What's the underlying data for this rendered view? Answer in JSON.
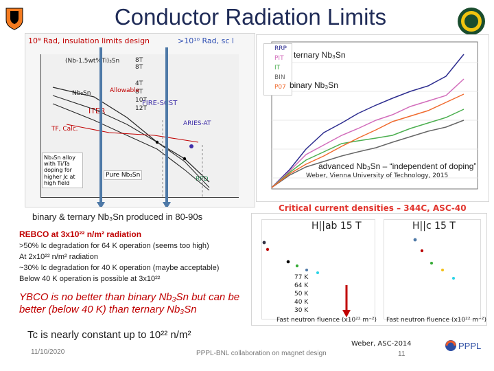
{
  "title": "Conductor Radiation Limits",
  "top_left_label_1": "10⁹ Rad, insulation limits design",
  "top_left_label_2": ">10¹⁰ Rad, sc l",
  "top_left_axis_1": "(Nb-1.5wt%Ti)₃Sn",
  "top_left_axis_2": "Nb₃Sn",
  "top_left_axis_3": "Allowable",
  "top_left_axis_4": "ITER",
  "top_left_axis_5": "FIRE-SCST",
  "top_left_axis_6": "ARIES-AT",
  "top_left_axis_7": "TF, Calc.",
  "top_left_axis_8": "RPD",
  "top_left_legend": [
    "8T",
    "8T",
    "4T",
    "8T",
    "10T",
    "12T"
  ],
  "left_box_text": "Nb₃Sn alloy with Ti/Ta doping for higher Jc at high field",
  "pure_label": "Pure Nb₃Sn",
  "lower_left_text": "binary & ternary Nb₃Sn produced in 80-90s",
  "middle_title": "REBCO at 3x10²² n/m² radiation",
  "middle_lines": [
    ">50% Ic degradation for 64 K operation (seems too high)",
    "At  2x10²² n/m² radiation",
    "~30% Ic degradation for 40 K operation (maybe acceptable)",
    "Below 40 K operation is possible at 3x10²²"
  ],
  "middle_red": "YBCO is no better than binary Nb₃Sn but can be better (below 40 K) than ternary Nb₃Sn",
  "tc_text": "Tc is nearly constant up to 10²² n/m²",
  "right_panel_label_1": "ternary Nb₃Sn",
  "right_panel_label_2": "binary Nb₃Sn",
  "right_panel_subtitle": "advanced Nb₃Sn – “independent of doping”",
  "right_panel_credit": "Weber, Vienna University of Technology, 2015",
  "right_panel_legend": [
    "RRP",
    "PIT",
    "IT",
    "BIN",
    "P07"
  ],
  "bottom_right_title": "Critical current densities – 344C, ASC-40",
  "bottom_right_sub1": "H||ab 15 T",
  "bottom_right_sub2": "H||c 15 T",
  "bottom_right_legend": [
    "77 K",
    "64 K",
    "50 K",
    "40 K",
    "30 K"
  ],
  "bottom_right_axis1": "Fast neutron fluence (x10²² m⁻²)",
  "bottom_right_axis2": "Fast neutron fluence (x10²² m⁻²)",
  "weber_asc": "Weber, ASC-2014",
  "footer_left": "11/10/2020",
  "footer_center": "PPPL-BNL collaboration on magnet design",
  "footer_right": "11",
  "pppl_logo": "PPPL",
  "accent_color": "#1f2b57"
}
